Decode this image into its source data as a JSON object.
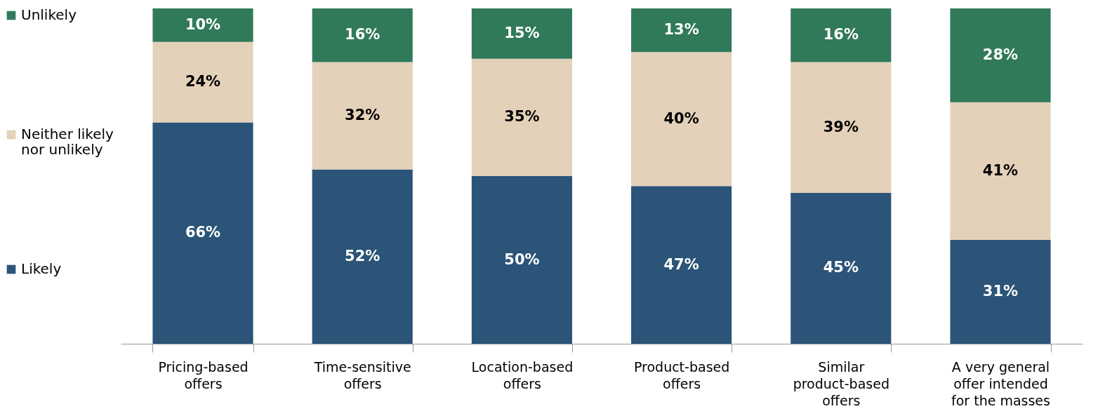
{
  "chart_data": {
    "type": "bar",
    "stacked": true,
    "legend": "left",
    "tick_labels": "x",
    "categories": [
      "Pricing-based offers",
      "Time-sensitive offers",
      "Location-based offers",
      "Product-based offers",
      "Similar product-based offers",
      "A very general offer intended for the masses"
    ],
    "series": [
      {
        "name": "Likely",
        "color": "#2b5478",
        "values": [
          66,
          52,
          50,
          47,
          45,
          31
        ],
        "value_labels": [
          "66%",
          "52%",
          "50%",
          "47%",
          "45%",
          "31%"
        ]
      },
      {
        "name": "Neither likely nor unlikely",
        "color": "#e4d1b9",
        "values": [
          24,
          32,
          35,
          40,
          39,
          41
        ],
        "value_labels": [
          "24%",
          "32%",
          "35%",
          "40%",
          "39%",
          "41%"
        ]
      },
      {
        "name": "Unlikely",
        "color": "#317a59",
        "values": [
          10,
          16,
          15,
          13,
          16,
          28
        ],
        "value_labels": [
          "10%",
          "16%",
          "15%",
          "13%",
          "16%",
          "28%"
        ]
      }
    ]
  }
}
